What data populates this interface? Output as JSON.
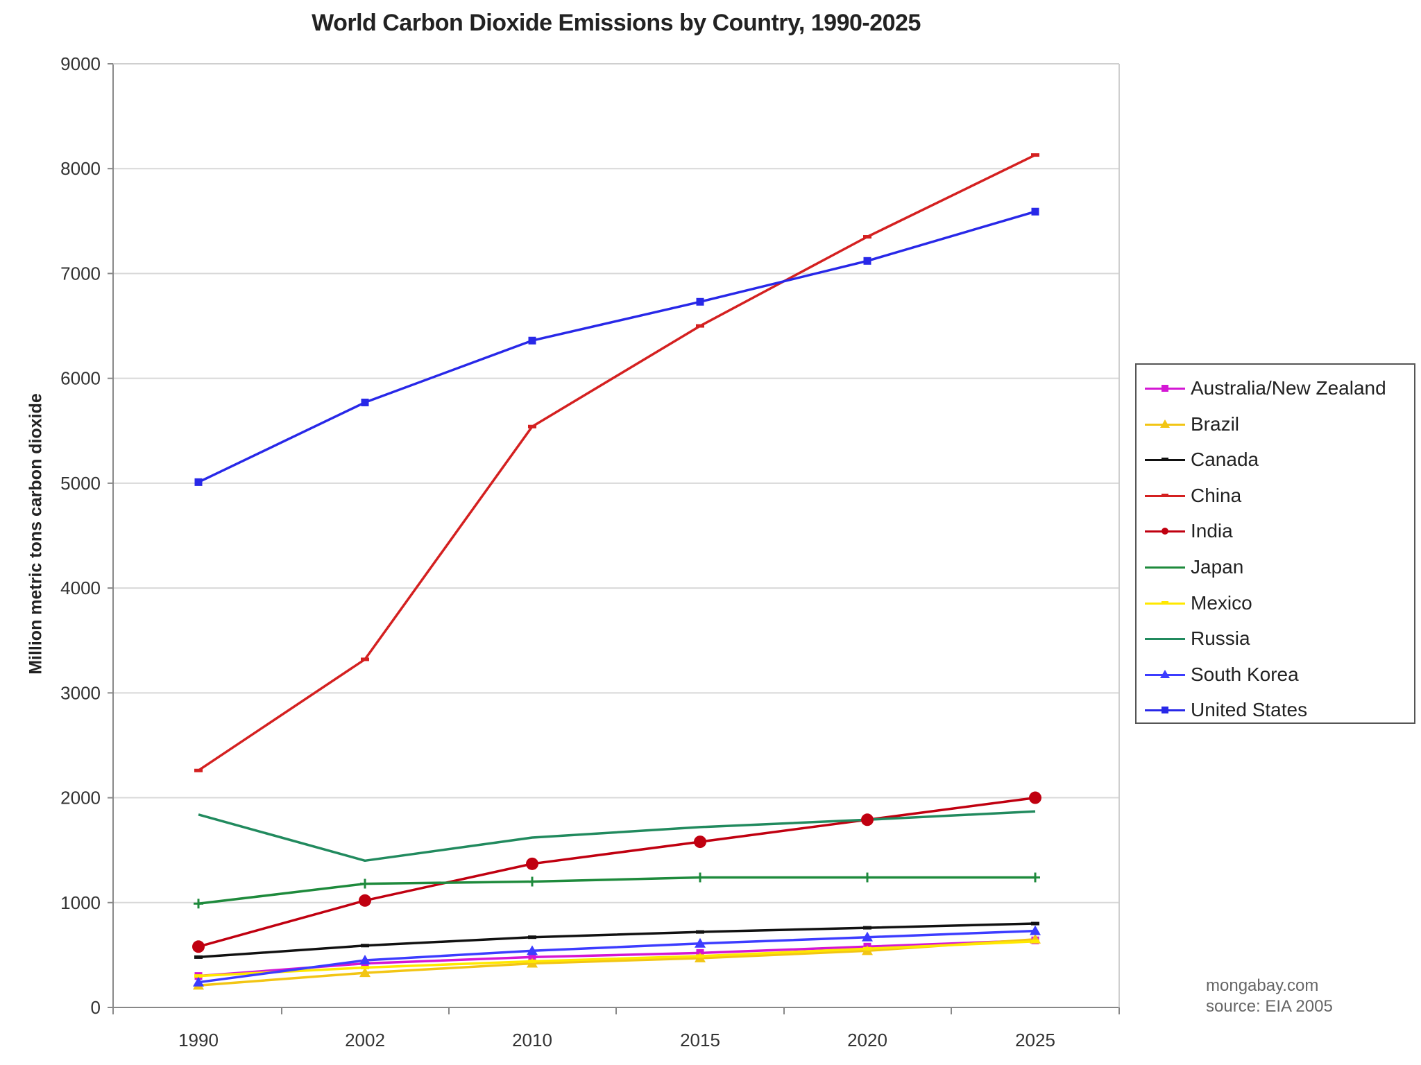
{
  "chart_data": {
    "type": "line",
    "title": "World Carbon Dioxide Emissions by Country, 1990-2025",
    "xlabel": "",
    "ylabel": "Million metric tons carbon dioxide",
    "categories": [
      "1990",
      "2002",
      "2010",
      "2015",
      "2020",
      "2025"
    ],
    "ylim": [
      0,
      9000
    ],
    "yticks": [
      "0",
      "1000",
      "2000",
      "3000",
      "4000",
      "5000",
      "6000",
      "7000",
      "8000",
      "9000"
    ],
    "grid": true,
    "legend_position": "right",
    "series": [
      {
        "name": "Australia/New Zealand",
        "color": "#d417d4",
        "marker": "square",
        "values": [
          300,
          420,
          480,
          520,
          580,
          640
        ]
      },
      {
        "name": "Brazil",
        "color": "#f2c514",
        "marker": "triangle",
        "values": [
          210,
          330,
          420,
          470,
          540,
          650
        ]
      },
      {
        "name": "Canada",
        "color": "#111111",
        "marker": "dash",
        "values": [
          480,
          590,
          670,
          720,
          760,
          800
        ]
      },
      {
        "name": "China",
        "color": "#d42020",
        "marker": "dash",
        "values": [
          2260,
          3320,
          5540,
          6500,
          7350,
          8130
        ]
      },
      {
        "name": "India",
        "color": "#c00010",
        "marker": "circle",
        "values": [
          580,
          1020,
          1370,
          1580,
          1790,
          2000
        ]
      },
      {
        "name": "Japan",
        "color": "#1e8a3c",
        "marker": "plus",
        "values": [
          990,
          1180,
          1200,
          1240,
          1240,
          1240
        ]
      },
      {
        "name": "Mexico",
        "color": "#ffe800",
        "marker": "dash",
        "values": [
          300,
          380,
          440,
          490,
          560,
          630
        ]
      },
      {
        "name": "Russia",
        "color": "#218a5e",
        "marker": "none",
        "values": [
          1840,
          1400,
          1620,
          1720,
          1790,
          1870
        ]
      },
      {
        "name": "South Korea",
        "color": "#3c3cff",
        "marker": "triangle",
        "values": [
          240,
          450,
          540,
          610,
          670,
          730
        ]
      },
      {
        "name": "United States",
        "color": "#2828e8",
        "marker": "square",
        "values": [
          5010,
          5770,
          6360,
          6730,
          7120,
          7590
        ]
      }
    ]
  },
  "credit": {
    "line1": "mongabay.com",
    "line2": "source: EIA 2005"
  }
}
